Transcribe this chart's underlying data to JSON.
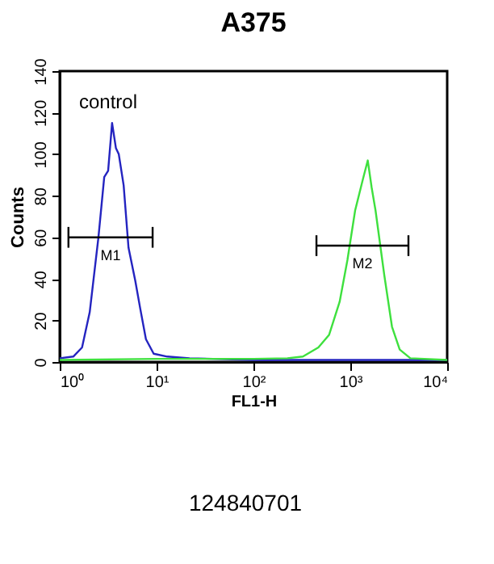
{
  "chart_data": {
    "type": "line",
    "title": "A375",
    "xlabel": "FL1-H",
    "ylabel": "Counts",
    "log": "x",
    "xlim": [
      1,
      10000
    ],
    "ylim": [
      0,
      140
    ],
    "xticks": [
      {
        "value": 1,
        "label": "10⁰"
      },
      {
        "value": 10,
        "label": "10¹"
      },
      {
        "value": 100,
        "label": "10²"
      },
      {
        "value": 1000,
        "label": "10³"
      },
      {
        "value": 10000,
        "label": "10⁴"
      }
    ],
    "yticks": [
      0,
      20,
      40,
      60,
      80,
      100,
      120,
      140
    ],
    "grid": false,
    "marker": "none",
    "line_style": "solid",
    "series": [
      {
        "name": "control",
        "color": "#2424c0",
        "x": [
          1,
          1.38,
          1.7,
          2.04,
          2.51,
          2.88,
          3.16,
          3.47,
          3.8,
          4.07,
          4.57,
          5.13,
          6.03,
          6.76,
          7.76,
          9.33,
          12.9,
          21.9,
          100,
          1000,
          10000
        ],
        "values": [
          1.8,
          2.6,
          7,
          24,
          60,
          89,
          92,
          115,
          103,
          100,
          85,
          55,
          39,
          26,
          11,
          4,
          2.6,
          1.8,
          1,
          1,
          1
        ]
      },
      {
        "color": "#3ee03e",
        "x": [
          1,
          10,
          100,
          224,
          324,
          468,
          603,
          776,
          933,
          1122,
          1349,
          1514,
          1660,
          1820,
          2239,
          2692,
          3236,
          4169,
          10000
        ],
        "values": [
          1,
          1.5,
          1.5,
          1.8,
          2.6,
          7,
          13,
          29,
          49,
          73,
          88,
          97,
          84,
          73,
          42,
          17,
          6,
          1.8,
          1
        ]
      },
      {
        "color": "#000000",
        "x": [
          1.23,
          9.1
        ],
        "values": [
          60,
          60
        ],
        "errors": [
          5,
          5
        ]
      },
      {
        "color": "#000000",
        "x": [
          447,
          3981
        ],
        "values": [
          56,
          56
        ],
        "errors": [
          5,
          5
        ]
      }
    ],
    "annotations": [
      {
        "text": "M1",
        "x": 3.35,
        "y": 60
      },
      {
        "text": "M2",
        "x": 1334,
        "y": 56
      },
      "124840701"
    ]
  }
}
